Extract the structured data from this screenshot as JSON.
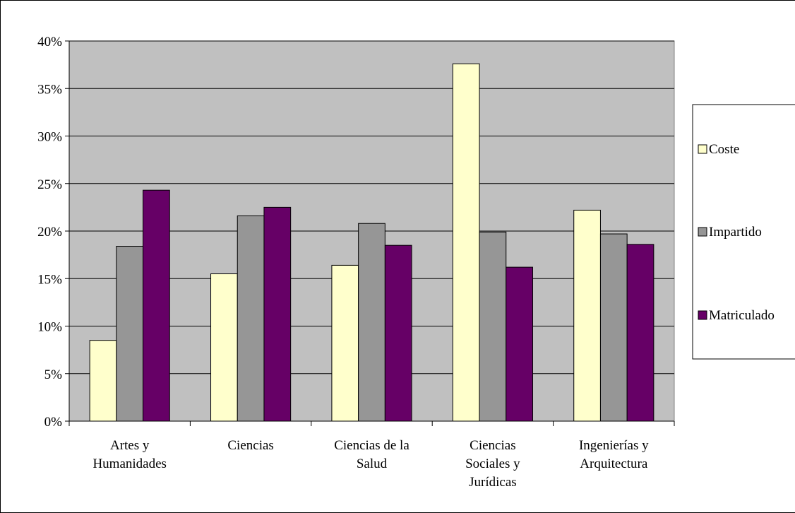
{
  "chart_data": {
    "type": "bar",
    "categories": [
      [
        "Artes y",
        "Humanidades"
      ],
      [
        "Ciencias"
      ],
      [
        "Ciencias de la",
        "Salud"
      ],
      [
        "Ciencias",
        "Sociales y",
        "Jurídicas"
      ],
      [
        "Ingenierías y",
        "Arquitectura"
      ]
    ],
    "series": [
      {
        "name": "Coste",
        "color": "#ffffcc",
        "values": [
          8.5,
          15.5,
          16.4,
          37.6,
          22.2
        ]
      },
      {
        "name": "Impartido",
        "color": "#969696",
        "values": [
          18.4,
          21.6,
          20.8,
          19.9,
          19.7
        ]
      },
      {
        "name": "Matriculado",
        "color": "#660066",
        "values": [
          24.3,
          22.5,
          18.5,
          16.2,
          18.6
        ]
      }
    ],
    "yticks": [
      "0%",
      "5%",
      "10%",
      "15%",
      "20%",
      "25%",
      "30%",
      "35%",
      "40%"
    ],
    "ylim": [
      0,
      40
    ],
    "grid": true,
    "plot_background": "#c0c0c0",
    "legend_position": "right"
  }
}
